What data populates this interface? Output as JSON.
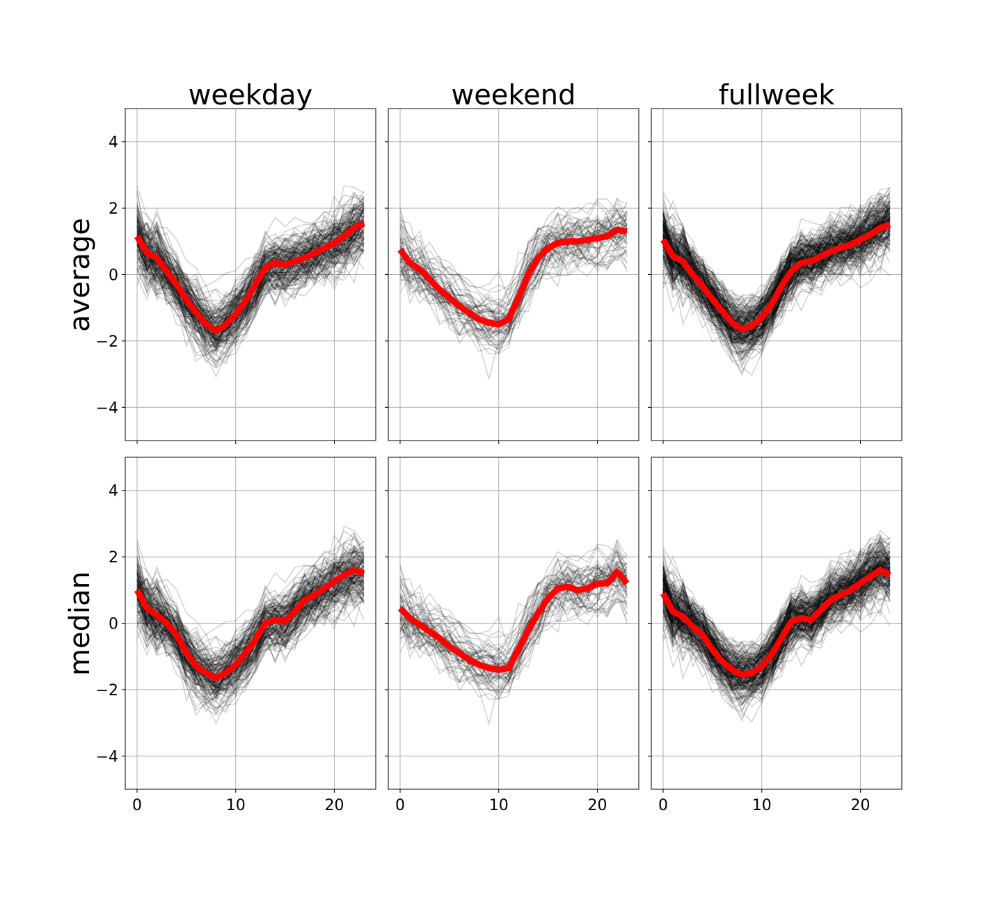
{
  "figure": {
    "col_titles": [
      "weekday",
      "weekend",
      "fullweek"
    ],
    "row_labels": [
      "average",
      "median"
    ],
    "colors": {
      "individual": "#000000",
      "aggregate": "#ff0000",
      "grid": "#b0b0b0",
      "frame": "#000000"
    }
  },
  "chart_data": [
    {
      "type": "line",
      "title": "weekday",
      "ylabel": "average",
      "xlim": [
        -1.2,
        24.2
      ],
      "ylim": [
        -5,
        5
      ],
      "grid": true,
      "xticks": [
        "0",
        "10",
        "20"
      ],
      "yticks": [
        "4",
        "2",
        "0",
        "−2",
        "−4"
      ],
      "background_series": {
        "count": 150,
        "color": "#000000",
        "opacity": "low",
        "description": "individual hourly profiles"
      },
      "series": [
        {
          "color": "#ff0000",
          "x": [
            0,
            1,
            2,
            3,
            4,
            5,
            6,
            7,
            8,
            9,
            10,
            11,
            12,
            13,
            14,
            15,
            16,
            17,
            18,
            19,
            20,
            21,
            22,
            23
          ],
          "values": [
            1.15,
            0.65,
            0.5,
            0.1,
            -0.3,
            -0.75,
            -1.15,
            -1.5,
            -1.7,
            -1.5,
            -1.2,
            -0.8,
            -0.3,
            0.2,
            0.35,
            0.3,
            0.4,
            0.5,
            0.65,
            0.8,
            0.95,
            1.15,
            1.4,
            1.55
          ]
        }
      ]
    },
    {
      "type": "line",
      "title": "weekend",
      "ylabel": "average",
      "xlim": [
        -1.2,
        24.2
      ],
      "ylim": [
        -5,
        5
      ],
      "grid": true,
      "xticks": [
        "0",
        "10",
        "20"
      ],
      "yticks": [
        "4",
        "2",
        "0",
        "−2",
        "−4"
      ],
      "background_series": {
        "count": 60,
        "color": "#000000",
        "opacity": "low",
        "description": "individual hourly profiles"
      },
      "series": [
        {
          "color": "#ff0000",
          "x": [
            0,
            1,
            2,
            3,
            4,
            5,
            6,
            7,
            8,
            9,
            10,
            11,
            12,
            13,
            14,
            15,
            16,
            17,
            18,
            19,
            20,
            21,
            22,
            23
          ],
          "values": [
            0.75,
            0.35,
            0.15,
            -0.15,
            -0.45,
            -0.7,
            -0.95,
            -1.15,
            -1.35,
            -1.45,
            -1.5,
            -1.35,
            -0.7,
            0.0,
            0.5,
            0.8,
            0.95,
            1.0,
            1.0,
            1.05,
            1.1,
            1.15,
            1.35,
            1.3
          ]
        }
      ]
    },
    {
      "type": "line",
      "title": "fullweek",
      "ylabel": "average",
      "xlim": [
        -1.2,
        24.2
      ],
      "ylim": [
        -5,
        5
      ],
      "grid": true,
      "xticks": [
        "0",
        "10",
        "20"
      ],
      "yticks": [
        "4",
        "2",
        "0",
        "−2",
        "−4"
      ],
      "background_series": {
        "count": 200,
        "color": "#000000",
        "opacity": "low",
        "description": "individual hourly profiles"
      },
      "series": [
        {
          "color": "#ff0000",
          "x": [
            0,
            1,
            2,
            3,
            4,
            5,
            6,
            7,
            8,
            9,
            10,
            11,
            12,
            13,
            14,
            15,
            16,
            17,
            18,
            19,
            20,
            21,
            22,
            23
          ],
          "values": [
            1.05,
            0.55,
            0.4,
            0.0,
            -0.35,
            -0.75,
            -1.1,
            -1.45,
            -1.65,
            -1.55,
            -1.3,
            -0.9,
            -0.35,
            0.1,
            0.35,
            0.4,
            0.55,
            0.7,
            0.8,
            0.9,
            1.05,
            1.2,
            1.4,
            1.5
          ]
        }
      ]
    },
    {
      "type": "line",
      "title": "weekday",
      "ylabel": "median",
      "xlim": [
        -1.2,
        24.2
      ],
      "ylim": [
        -5,
        5
      ],
      "grid": true,
      "xticks": [
        "0",
        "10",
        "20"
      ],
      "yticks": [
        "4",
        "2",
        "0",
        "−2",
        "−4"
      ],
      "background_series": {
        "count": 150,
        "color": "#000000",
        "opacity": "low",
        "description": "individual hourly profiles"
      },
      "series": [
        {
          "color": "#ff0000",
          "x": [
            0,
            1,
            2,
            3,
            4,
            5,
            6,
            7,
            8,
            9,
            10,
            11,
            12,
            13,
            14,
            15,
            16,
            17,
            18,
            19,
            20,
            21,
            22,
            23
          ],
          "values": [
            1.0,
            0.45,
            0.25,
            0.0,
            -0.35,
            -0.9,
            -1.3,
            -1.5,
            -1.65,
            -1.5,
            -1.25,
            -0.9,
            -0.5,
            0.0,
            0.1,
            0.05,
            0.35,
            0.7,
            0.85,
            1.05,
            1.25,
            1.45,
            1.6,
            1.5
          ]
        }
      ]
    },
    {
      "type": "line",
      "title": "weekend",
      "ylabel": "median",
      "xlim": [
        -1.2,
        24.2
      ],
      "ylim": [
        -5,
        5
      ],
      "grid": true,
      "xticks": [
        "0",
        "10",
        "20"
      ],
      "yticks": [
        "4",
        "2",
        "0",
        "−2",
        "−4"
      ],
      "background_series": {
        "count": 60,
        "color": "#000000",
        "opacity": "low",
        "description": "individual hourly profiles"
      },
      "series": [
        {
          "color": "#ff0000",
          "x": [
            0,
            1,
            2,
            3,
            4,
            5,
            6,
            7,
            8,
            9,
            10,
            11,
            12,
            13,
            14,
            15,
            16,
            17,
            18,
            19,
            20,
            21,
            22,
            23
          ],
          "values": [
            0.45,
            0.15,
            -0.05,
            -0.25,
            -0.45,
            -0.7,
            -0.9,
            -1.1,
            -1.25,
            -1.35,
            -1.4,
            -1.35,
            -0.8,
            -0.2,
            0.3,
            0.75,
            1.05,
            1.1,
            1.0,
            1.05,
            1.2,
            1.2,
            1.55,
            1.2
          ]
        }
      ]
    },
    {
      "type": "line",
      "title": "fullweek",
      "ylabel": "median",
      "xlim": [
        -1.2,
        24.2
      ],
      "ylim": [
        -5,
        5
      ],
      "grid": true,
      "xticks": [
        "0",
        "10",
        "20"
      ],
      "yticks": [
        "4",
        "2",
        "0",
        "−2",
        "−4"
      ],
      "background_series": {
        "count": 200,
        "color": "#000000",
        "opacity": "low",
        "description": "individual hourly profiles"
      },
      "series": [
        {
          "color": "#ff0000",
          "x": [
            0,
            1,
            2,
            3,
            4,
            5,
            6,
            7,
            8,
            9,
            10,
            11,
            12,
            13,
            14,
            15,
            16,
            17,
            18,
            19,
            20,
            21,
            22,
            23
          ],
          "values": [
            0.9,
            0.35,
            0.2,
            -0.1,
            -0.35,
            -0.8,
            -1.15,
            -1.4,
            -1.55,
            -1.5,
            -1.3,
            -0.95,
            -0.45,
            0.05,
            0.15,
            0.1,
            0.4,
            0.7,
            0.85,
            1.0,
            1.2,
            1.4,
            1.6,
            1.45
          ]
        }
      ]
    }
  ]
}
